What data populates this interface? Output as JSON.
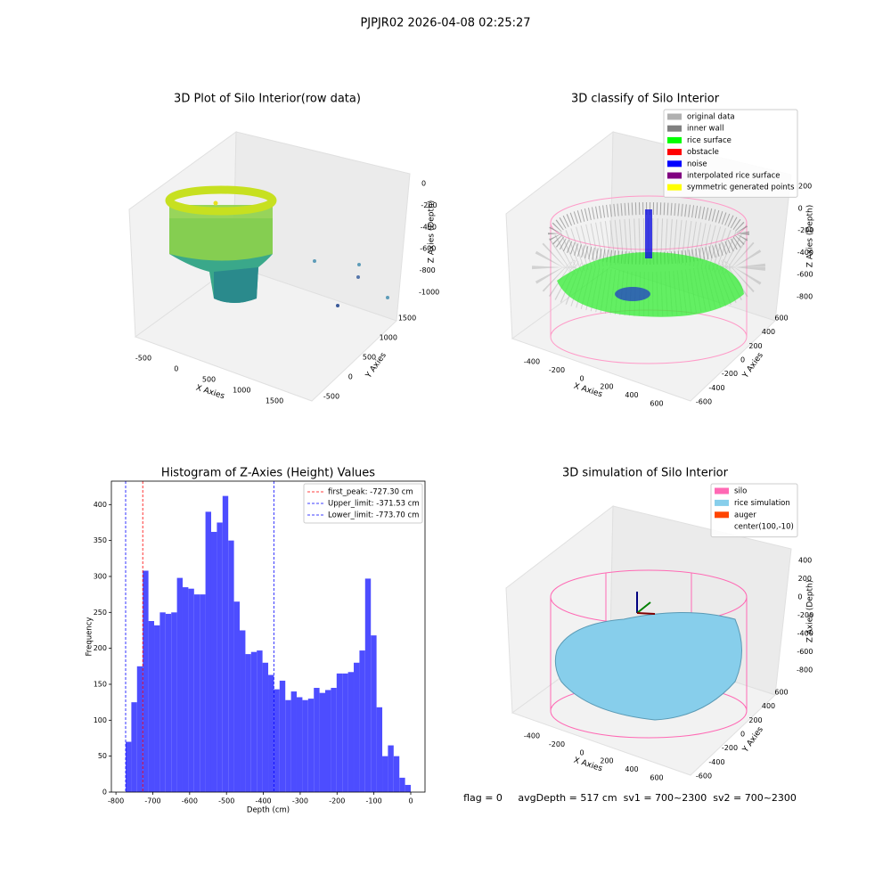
{
  "title": "PJPJR02 2026-04-08 02:25:27",
  "chart_data": [
    {
      "type": "scatter3d",
      "title": "3D Plot of Silo Interior(row data)",
      "xlabel": "X Axies",
      "ylabel": "Y Axies",
      "zlabel": "Z Axies (Depth)",
      "xticks": [
        -500,
        0,
        500,
        1000,
        1500
      ],
      "yticks": [
        -500,
        0,
        500,
        1000,
        1500
      ],
      "zticks": [
        0,
        -200,
        -400,
        -600,
        -800,
        -1000
      ]
    },
    {
      "type": "scatter3d",
      "title": "3D classify of Silo Interior",
      "xlabel": "X Axies",
      "ylabel": "Y Axies",
      "zlabel": "Z Axies (Depth)",
      "xticks": [
        -400,
        -200,
        0,
        200,
        400,
        600
      ],
      "yticks": [
        -600,
        -400,
        -200,
        0,
        200,
        400,
        600
      ],
      "zticks": [
        200,
        0,
        -200,
        -400,
        -600,
        -800
      ],
      "legend": [
        {
          "name": "original data",
          "color": "#b0b0b0"
        },
        {
          "name": "inner wall",
          "color": "#808080"
        },
        {
          "name": "rice surface",
          "color": "#00ff00"
        },
        {
          "name": "obstacle",
          "color": "#ff0000"
        },
        {
          "name": "noise",
          "color": "#0000ff"
        },
        {
          "name": "interpolated rice surface",
          "color": "#800080"
        },
        {
          "name": "symmetric generated points",
          "color": "#ffff00"
        }
      ]
    },
    {
      "type": "histogram",
      "title": "Histogram of Z-Axies (Height) Values",
      "xlabel": "Depth (cm)",
      "ylabel": "Frequency",
      "color": "#4d4dff",
      "bins": [
        -773.7,
        -758.2,
        -742.8,
        -727.3,
        -711.8,
        -696.3,
        -680.9,
        -665.4,
        -649.9,
        -634.4,
        -619.0,
        -603.5,
        -588.0,
        -572.5,
        -557.1,
        -541.6,
        -526.1,
        -510.6,
        -495.2,
        -479.7,
        -464.2,
        -448.7,
        -433.3,
        -417.8,
        -402.3,
        -386.8,
        -371.4,
        -355.9,
        -340.4,
        -324.9,
        -309.5,
        -294.0,
        -278.5,
        -263.0,
        -247.6,
        -232.1,
        -216.6,
        -201.1,
        -185.7,
        -170.2,
        -154.7,
        -139.2,
        -123.8,
        -108.3,
        -92.8,
        -77.3,
        -61.9,
        -46.4,
        -30.9,
        -15.4,
        0.0
      ],
      "counts": [
        70,
        125,
        175,
        308,
        238,
        232,
        250,
        248,
        250,
        298,
        285,
        283,
        275,
        275,
        390,
        362,
        375,
        412,
        350,
        265,
        225,
        192,
        195,
        197,
        180,
        163,
        143,
        155,
        128,
        140,
        132,
        128,
        130,
        145,
        138,
        142,
        145,
        165,
        165,
        167,
        180,
        197,
        297,
        218,
        118,
        50,
        65,
        50,
        20,
        10
      ],
      "xlim": [
        -812.4,
        38.7
      ],
      "ylim": [
        0,
        432.6
      ],
      "xticks": [
        -800,
        -700,
        -600,
        -500,
        -400,
        -300,
        -200,
        -100,
        0
      ],
      "yticks": [
        0,
        50,
        100,
        150,
        200,
        250,
        300,
        350,
        400
      ],
      "lines": [
        {
          "name": "first_peak: -727.30 cm",
          "value": -727.3,
          "color": "#ff0000"
        },
        {
          "name": "Upper_limit: -371.53 cm",
          "value": -371.53,
          "color": "#0000ff"
        },
        {
          "name": "Lower_limit: -773.70 cm",
          "value": -773.7,
          "color": "#0000ff"
        }
      ]
    },
    {
      "type": "surface3d",
      "title": "3D simulation of Silo Interior",
      "xlabel": "X Axies",
      "ylabel": "Y Axies",
      "zlabel": "Z Axies (Depth)",
      "xticks": [
        -400,
        -200,
        0,
        200,
        400,
        600
      ],
      "yticks": [
        -600,
        -400,
        -200,
        0,
        200,
        400,
        600
      ],
      "zticks": [
        400,
        200,
        0,
        -200,
        -400,
        -600,
        -800
      ],
      "legend": [
        {
          "name": "silo",
          "color": "#ff69b4"
        },
        {
          "name": "rice simulation",
          "color": "#87ceeb"
        },
        {
          "name": "auger",
          "color": "#ff4500"
        },
        {
          "name": "center(100,-10)"
        }
      ]
    }
  ],
  "footer": "flag = 0     avgDepth = 517 cm  sv1 = 700~2300  sv2 = 700~2300"
}
